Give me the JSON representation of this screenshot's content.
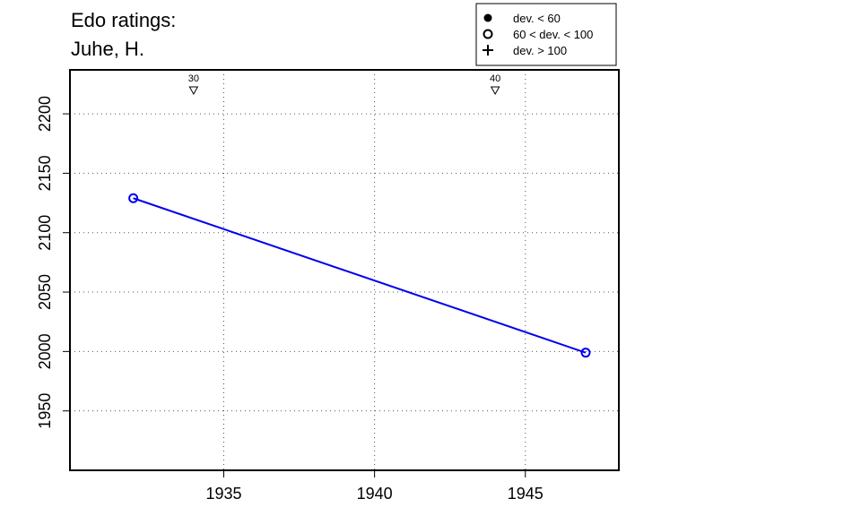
{
  "chart_data": {
    "type": "line",
    "title": [
      "Edo ratings:",
      "Juhe, H."
    ],
    "xlim": [
      1929.9,
      1948.1
    ],
    "ylim": [
      1900,
      2237
    ],
    "x_ticks": [
      1935,
      1940,
      1945
    ],
    "y_ticks": [
      1950,
      2000,
      2050,
      2100,
      2150,
      2200
    ],
    "grid": true,
    "series": [
      {
        "color": "#0000ee",
        "marker": "open-circle",
        "points": [
          {
            "x": 1932,
            "y": 2129
          },
          {
            "x": 1947,
            "y": 1999
          }
        ]
      }
    ],
    "markers": [
      {
        "x": 1934,
        "label": "30",
        "symbol": "▽"
      },
      {
        "x": 1944,
        "label": "40",
        "symbol": "▽"
      }
    ],
    "legend": {
      "placement": "top-right",
      "entries": [
        {
          "symbol": "filled-circle",
          "label": "dev. < 60"
        },
        {
          "symbol": "open-circle",
          "label": "60 < dev. < 100"
        },
        {
          "symbol": "plus",
          "label": "dev. > 100"
        }
      ]
    }
  }
}
